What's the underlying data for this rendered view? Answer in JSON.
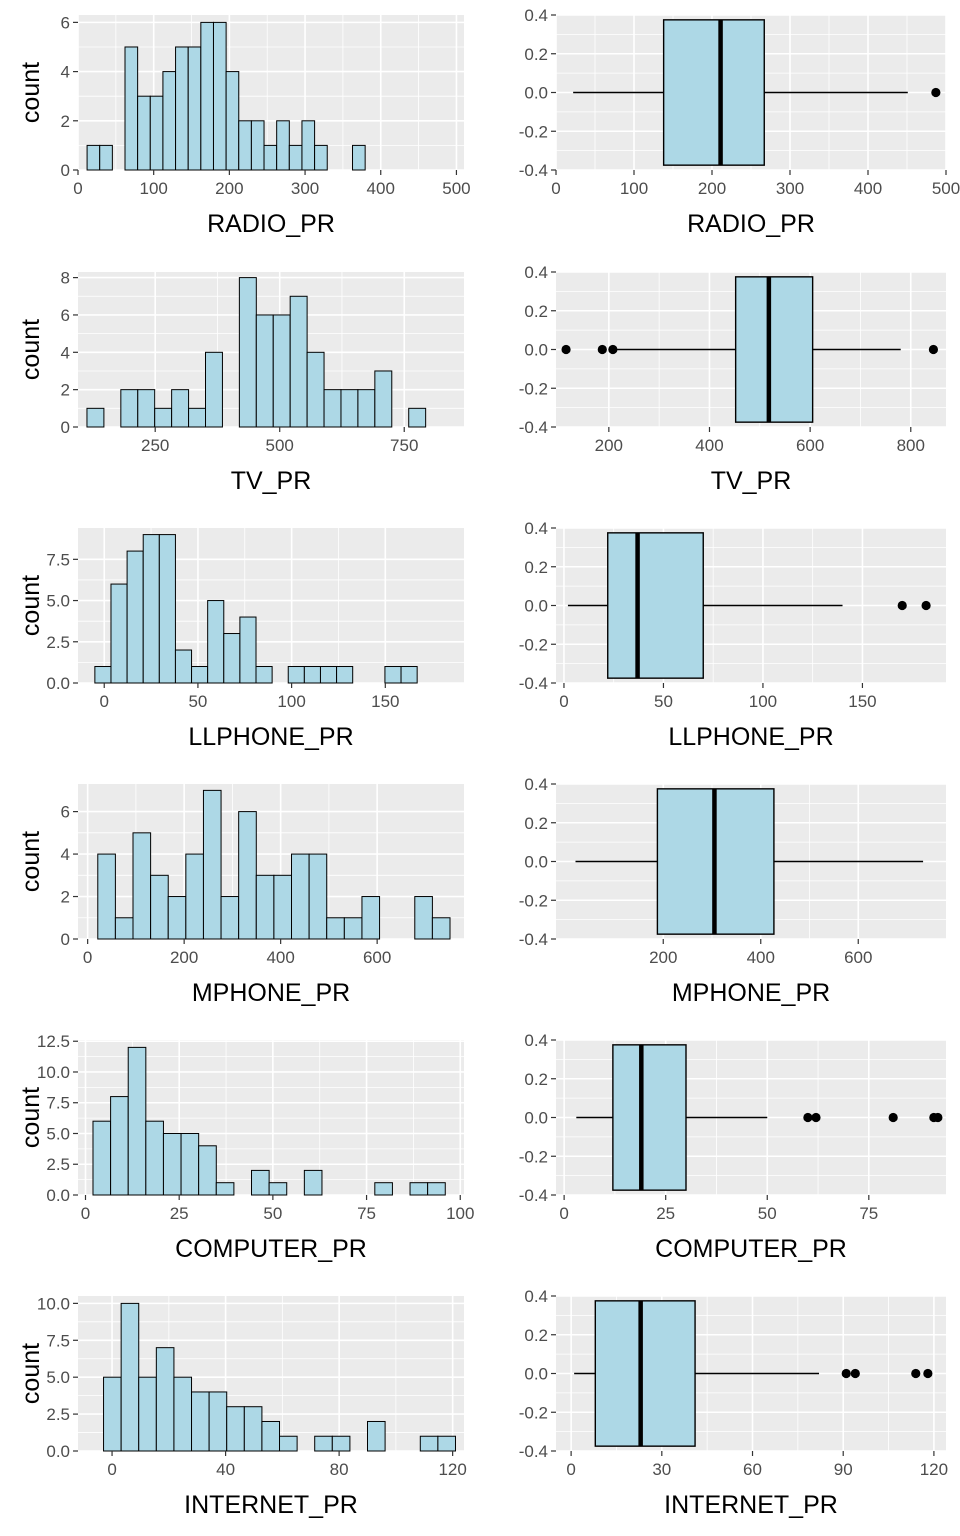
{
  "colors": {
    "panel_background": "#ebebeb",
    "gridline": "#ffffff",
    "bar_fill": "#add8e6",
    "box_fill": "#add8e6",
    "outline": "#000000",
    "tick_text": "#4d4d4d",
    "title_text": "#000000"
  },
  "chart_data": [
    {
      "type": "bar",
      "subtype": "histogram",
      "xlabel": "RADIO_PR",
      "ylabel": "count",
      "xlim": [
        0,
        510
      ],
      "ylim": [
        0,
        6.3
      ],
      "xticks": [
        0,
        100,
        200,
        300,
        400,
        500
      ],
      "xtick_labels": [
        "0",
        "100",
        "200",
        "300",
        "400",
        "500"
      ],
      "yticks": [
        0,
        2,
        4,
        6
      ],
      "ytick_labels": [
        "0",
        "2",
        "4",
        "6"
      ],
      "bin_start": 12,
      "bin_width": 16.7,
      "counts": [
        1,
        1,
        0,
        5,
        3,
        3,
        4,
        5,
        5,
        6,
        6,
        4,
        2,
        2,
        1,
        2,
        1,
        2,
        1,
        0,
        0,
        1
      ],
      "grid": true
    },
    {
      "type": "box",
      "xlabel": "RADIO_PR",
      "ylabel": "",
      "xlim": [
        0,
        500
      ],
      "ylim": [
        -0.4,
        0.4
      ],
      "xticks": [
        0,
        100,
        200,
        300,
        400,
        500
      ],
      "xtick_labels": [
        "0",
        "100",
        "200",
        "300",
        "400",
        "500"
      ],
      "yticks": [
        -0.4,
        -0.2,
        0,
        0.2,
        0.4
      ],
      "ytick_labels": [
        "-0.4",
        "-0.2",
        "0.0",
        "0.2",
        "0.4"
      ],
      "whisker_low": 22,
      "q1": 138,
      "median": 211,
      "q3": 267,
      "whisker_high": 451,
      "outliers": [
        487
      ],
      "grid": true
    },
    {
      "type": "bar",
      "subtype": "histogram",
      "xlabel": "TV_PR",
      "ylabel": "count",
      "xlim": [
        95,
        870
      ],
      "ylim": [
        0,
        8.3
      ],
      "xticks": [
        250,
        500,
        750
      ],
      "xtick_labels": [
        "250",
        "500",
        "750"
      ],
      "yticks": [
        0,
        2,
        4,
        6,
        8
      ],
      "ytick_labels": [
        "0",
        "2",
        "4",
        "6",
        "8"
      ],
      "bin_start": 113,
      "bin_width": 34,
      "counts": [
        1,
        0,
        2,
        2,
        1,
        2,
        1,
        4,
        0,
        8,
        6,
        6,
        7,
        4,
        2,
        2,
        2,
        3,
        0,
        1
      ],
      "grid": true
    },
    {
      "type": "box",
      "xlabel": "TV_PR",
      "ylabel": "",
      "xlim": [
        95,
        870
      ],
      "ylim": [
        -0.4,
        0.4
      ],
      "xticks": [
        200,
        400,
        600,
        800
      ],
      "xtick_labels": [
        "200",
        "400",
        "600",
        "800"
      ],
      "yticks": [
        -0.4,
        -0.2,
        0,
        0.2,
        0.4
      ],
      "ytick_labels": [
        "-0.4",
        "-0.2",
        "0.0",
        "0.2",
        "0.4"
      ],
      "whisker_low": 210,
      "q1": 452,
      "median": 518,
      "q3": 605,
      "whisker_high": 780,
      "outliers": [
        115,
        187,
        208,
        845
      ],
      "grid": true
    },
    {
      "type": "bar",
      "subtype": "histogram",
      "xlabel": "LLPHONE_PR",
      "ylabel": "count",
      "xlim": [
        -14,
        192
      ],
      "ylim": [
        0,
        9.4
      ],
      "xticks": [
        0,
        50,
        100,
        150
      ],
      "xtick_labels": [
        "0",
        "50",
        "100",
        "150"
      ],
      "yticks": [
        0,
        2.5,
        5,
        7.5
      ],
      "ytick_labels": [
        "0.0",
        "2.5",
        "5.0",
        "7.5"
      ],
      "bin_start": -5,
      "bin_width": 8.6,
      "counts": [
        1,
        6,
        8,
        9,
        9,
        2,
        1,
        5,
        3,
        4,
        1,
        0,
        1,
        1,
        1,
        1,
        0,
        0,
        1,
        1
      ],
      "grid": true
    },
    {
      "type": "box",
      "xlabel": "LLPHONE_PR",
      "ylabel": "",
      "xlim": [
        -4,
        192
      ],
      "ylim": [
        -0.4,
        0.4
      ],
      "xticks": [
        0,
        50,
        100,
        150
      ],
      "xtick_labels": [
        "0",
        "50",
        "100",
        "150"
      ],
      "yticks": [
        -0.4,
        -0.2,
        0,
        0.2,
        0.4
      ],
      "ytick_labels": [
        "-0.4",
        "-0.2",
        "0.0",
        "0.2",
        "0.4"
      ],
      "whisker_low": 2,
      "q1": 22,
      "median": 37,
      "q3": 70,
      "whisker_high": 140,
      "outliers": [
        170,
        182
      ],
      "grid": true
    },
    {
      "type": "bar",
      "subtype": "histogram",
      "xlabel": "MPHONE_PR",
      "ylabel": "count",
      "xlim": [
        -20,
        780
      ],
      "ylim": [
        0,
        7.3
      ],
      "xticks": [
        0,
        200,
        400,
        600
      ],
      "xtick_labels": [
        "0",
        "200",
        "400",
        "600"
      ],
      "yticks": [
        0,
        2,
        4,
        6
      ],
      "ytick_labels": [
        "0",
        "2",
        "4",
        "6"
      ],
      "bin_start": 21,
      "bin_width": 36.5,
      "counts": [
        4,
        1,
        5,
        3,
        2,
        4,
        7,
        2,
        6,
        3,
        3,
        4,
        4,
        1,
        1,
        2,
        0,
        0,
        2,
        1
      ],
      "grid": true
    },
    {
      "type": "box",
      "xlabel": "MPHONE_PR",
      "ylabel": "",
      "xlim": [
        -20,
        780
      ],
      "ylim": [
        -0.4,
        0.4
      ],
      "xticks": [
        200,
        400,
        600
      ],
      "xtick_labels": [
        "200",
        "400",
        "600"
      ],
      "yticks": [
        -0.4,
        -0.2,
        0,
        0.2,
        0.4
      ],
      "ytick_labels": [
        "-0.4",
        "-0.2",
        "0.0",
        "0.2",
        "0.4"
      ],
      "whisker_low": 20,
      "q1": 188,
      "median": 305,
      "q3": 427,
      "whisker_high": 733,
      "outliers": [],
      "grid": true
    },
    {
      "type": "bar",
      "subtype": "histogram",
      "xlabel": "COMPUTER_PR",
      "ylabel": "count",
      "xlim": [
        -2,
        101
      ],
      "ylim": [
        0,
        12.6
      ],
      "xticks": [
        0,
        25,
        50,
        75,
        100
      ],
      "xtick_labels": [
        "0",
        "25",
        "50",
        "75",
        "100"
      ],
      "yticks": [
        0,
        2.5,
        5,
        7.5,
        10,
        12.5
      ],
      "ytick_labels": [
        "0.0",
        "2.5",
        "5.0",
        "7.5",
        "10.0",
        "12.5"
      ],
      "bin_start": 2,
      "bin_width": 4.7,
      "counts": [
        6,
        8,
        12,
        6,
        5,
        5,
        4,
        1,
        0,
        2,
        1,
        0,
        2,
        0,
        0,
        0,
        1,
        0,
        1,
        1
      ],
      "grid": true
    },
    {
      "type": "box",
      "xlabel": "COMPUTER_PR",
      "ylabel": "",
      "xlim": [
        -2,
        94
      ],
      "ylim": [
        -0.4,
        0.4
      ],
      "xticks": [
        0,
        25,
        50,
        75
      ],
      "xtick_labels": [
        "0",
        "25",
        "50",
        "75"
      ],
      "yticks": [
        -0.4,
        -0.2,
        0,
        0.2,
        0.4
      ],
      "ytick_labels": [
        "-0.4",
        "-0.2",
        "0.0",
        "0.2",
        "0.4"
      ],
      "whisker_low": 3,
      "q1": 12,
      "median": 19,
      "q3": 30,
      "whisker_high": 50,
      "outliers": [
        60,
        62,
        81,
        91,
        92
      ],
      "grid": true
    },
    {
      "type": "bar",
      "subtype": "histogram",
      "xlabel": "INTERNET_PR",
      "ylabel": "count",
      "xlim": [
        -12,
        124
      ],
      "ylim": [
        0,
        10.5
      ],
      "xticks": [
        0,
        40,
        80,
        120
      ],
      "xtick_labels": [
        "0",
        "40",
        "80",
        "120"
      ],
      "yticks": [
        0,
        2.5,
        5,
        7.5,
        10
      ],
      "ytick_labels": [
        "0.0",
        "2.5",
        "5.0",
        "7.5",
        "10.0"
      ],
      "bin_start": -3,
      "bin_width": 6.2,
      "counts": [
        5,
        10,
        5,
        7,
        5,
        4,
        4,
        3,
        3,
        2,
        1,
        0,
        1,
        1,
        0,
        2,
        0,
        0,
        1,
        1
      ],
      "grid": true
    },
    {
      "type": "box",
      "xlabel": "INTERNET_PR",
      "ylabel": "",
      "xlim": [
        -5,
        124
      ],
      "ylim": [
        -0.4,
        0.4
      ],
      "xticks": [
        0,
        30,
        60,
        90,
        120
      ],
      "xtick_labels": [
        "0",
        "30",
        "60",
        "90",
        "120"
      ],
      "yticks": [
        -0.4,
        -0.2,
        0,
        0.2,
        0.4
      ],
      "ytick_labels": [
        "-0.4",
        "-0.2",
        "0.0",
        "0.2",
        "0.4"
      ],
      "whisker_low": 1,
      "q1": 8,
      "median": 23,
      "q3": 41,
      "whisker_high": 82,
      "outliers": [
        91,
        94,
        114,
        118
      ],
      "grid": true
    }
  ]
}
